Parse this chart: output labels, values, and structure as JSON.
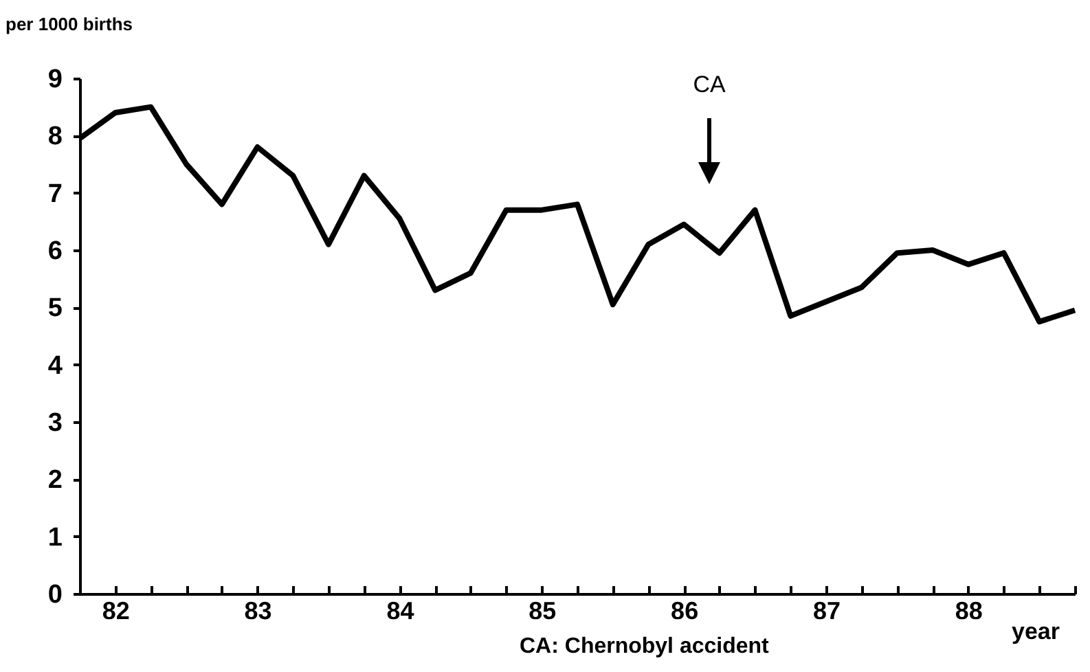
{
  "chart_data": {
    "type": "line",
    "ylabel": "per 1000 births",
    "xlabel": "year",
    "x": [
      81.75,
      82,
      82.25,
      82.5,
      82.75,
      83,
      83.25,
      83.5,
      83.75,
      84,
      84.25,
      84.5,
      84.75,
      85,
      85.25,
      85.5,
      85.75,
      86,
      86.25,
      86.5,
      86.75,
      87,
      87.25,
      87.5,
      87.75,
      88,
      88.25,
      88.5,
      88.75
    ],
    "series": [
      {
        "color": "#000000",
        "values": [
          7.95,
          8.4,
          8.5,
          7.5,
          6.8,
          7.8,
          7.3,
          6.1,
          7.3,
          6.55,
          5.3,
          5.6,
          6.7,
          6.7,
          6.8,
          5.05,
          6.1,
          6.45,
          5.95,
          6.7,
          4.85,
          5.1,
          5.35,
          5.95,
          6.0,
          5.75,
          5.95,
          4.75,
          4.95
        ]
      }
    ],
    "xlim": [
      81.75,
      88.75
    ],
    "xticks": [
      {
        "value": 81.75,
        "label": null
      },
      82,
      {
        "value": 82.25,
        "label": null
      },
      {
        "value": 82.5,
        "label": null
      },
      {
        "value": 82.75,
        "label": null
      },
      83,
      {
        "value": 83.25,
        "label": null
      },
      {
        "value": 83.5,
        "label": null
      },
      {
        "value": 83.75,
        "label": null
      },
      84,
      {
        "value": 84.25,
        "label": null
      },
      {
        "value": 84.5,
        "label": null
      },
      {
        "value": 84.75,
        "label": null
      },
      85,
      {
        "value": 85.25,
        "label": null
      },
      {
        "value": 85.5,
        "label": null
      },
      {
        "value": 85.75,
        "label": null
      },
      86,
      {
        "value": 86.25,
        "label": null
      },
      {
        "value": 86.5,
        "label": null
      },
      {
        "value": 86.75,
        "label": null
      },
      87,
      {
        "value": 87.25,
        "label": null
      },
      {
        "value": 87.5,
        "label": null
      },
      {
        "value": 87.75,
        "label": null
      },
      88,
      {
        "value": 88.25,
        "label": null
      },
      {
        "value": 88.5,
        "label": null
      },
      {
        "value": 88.75,
        "label": null
      }
    ],
    "ylim": [
      0,
      9
    ],
    "yticks": [
      0,
      1,
      2,
      3,
      4,
      5,
      6,
      7,
      8,
      9
    ],
    "grid": false,
    "marker": "none",
    "line_style": "solid",
    "annotations": [
      "CA",
      "CA: Chernobyl accident"
    ]
  }
}
